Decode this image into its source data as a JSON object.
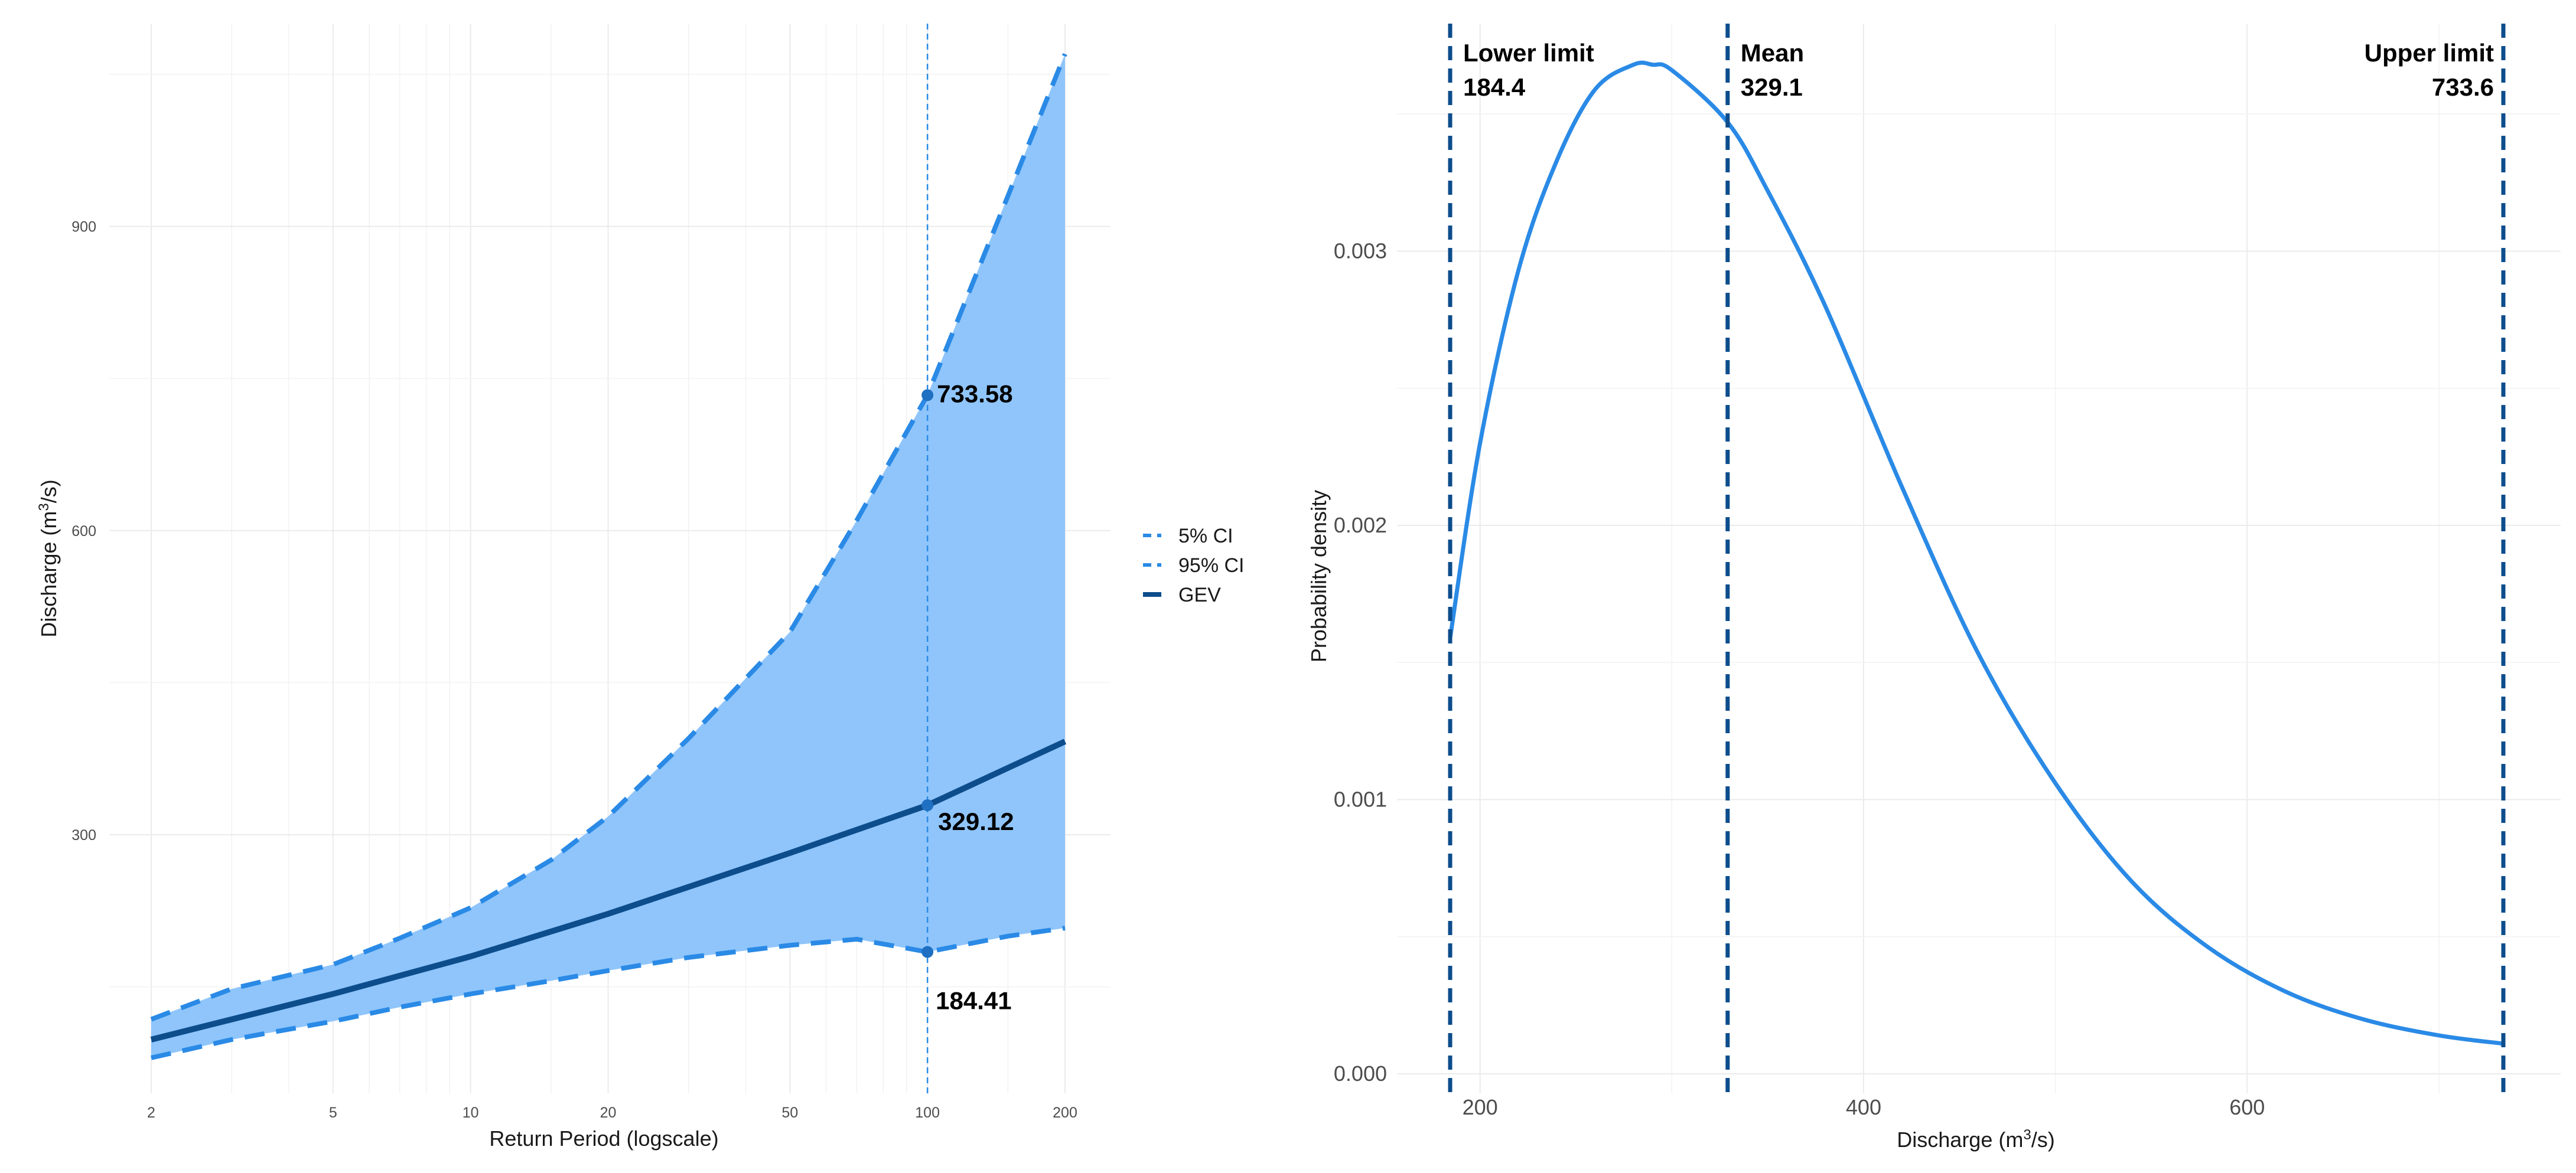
{
  "chart_data": [
    {
      "type": "line",
      "xlabel": "Return Period (logscale)",
      "ylabel_prefix": "Discharge (m",
      "ylabel_sup": "3",
      "ylabel_suffix": "/s)",
      "x_scale": "log",
      "xlim": [
        2,
        200
      ],
      "ylim": [
        45,
        1100
      ],
      "x_ticks": [
        2,
        5,
        10,
        20,
        50,
        100,
        200
      ],
      "x_tick_labels": [
        "2",
        "5",
        "10",
        "20",
        "50",
        "100",
        "200"
      ],
      "y_ticks": [
        300,
        600,
        900
      ],
      "y_tick_labels": [
        "300",
        "600",
        "900"
      ],
      "grid": true,
      "legend_position": "right",
      "reference_x": 100,
      "series": [
        {
          "name": "5% CI",
          "style": "dashed",
          "color": "#2a8ae6",
          "x": [
            2,
            3,
            5,
            7,
            10,
            15,
            20,
            30,
            50,
            70,
            100,
            150,
            200
          ],
          "y": [
            80,
            98,
            116,
            130,
            143,
            156,
            166,
            179,
            191,
            197,
            184.41,
            200,
            208
          ]
        },
        {
          "name": "95% CI",
          "style": "dashed",
          "color": "#2a8ae6",
          "x": [
            2,
            3,
            5,
            7,
            10,
            15,
            20,
            30,
            50,
            70,
            100,
            150,
            200
          ],
          "y": [
            118,
            148,
            172,
            198,
            228,
            275,
            318,
            395,
            500,
            610,
            733.58,
            930,
            1070
          ]
        },
        {
          "name": "GEV",
          "style": "solid",
          "color": "#0d4d8c",
          "x": [
            2,
            5,
            10,
            20,
            50,
            100,
            200
          ],
          "y": [
            98,
            143,
            180,
            222,
            282,
            329.12,
            392
          ]
        }
      ],
      "points": [
        {
          "x": 100,
          "y": 733.58,
          "label": "733.58"
        },
        {
          "x": 100,
          "y": 329.12,
          "label": "329.12"
        },
        {
          "x": 100,
          "y": 184.41,
          "label": "184.41"
        }
      ],
      "ribbon_color": "#8fc5fb"
    },
    {
      "type": "line",
      "xlabel_prefix": "Discharge (m",
      "xlabel_sup": "3",
      "xlabel_suffix": "/s)",
      "ylabel": "Probability density",
      "xlim": [
        165,
        745
      ],
      "ylim": [
        -5e-05,
        0.00385
      ],
      "x_ticks": [
        200,
        400,
        600
      ],
      "x_tick_labels": [
        "200",
        "400",
        "600"
      ],
      "y_ticks": [
        0,
        0.001,
        0.002,
        0.003
      ],
      "y_tick_labels": [
        "0.000",
        "0.001",
        "0.002",
        "0.003"
      ],
      "grid": true,
      "series": [
        {
          "name": "",
          "style": "solid",
          "color": "#2a8ae6",
          "x": [
            184.4,
            200,
            220,
            240,
            260,
            280,
            290,
            300,
            329.1,
            350,
            380,
            420,
            460,
            500,
            540,
            580,
            620,
            660,
            700,
            733.6
          ],
          "y": [
            0.00159,
            0.0023,
            0.00293,
            0.00333,
            0.00359,
            0.00368,
            0.00368,
            0.00366,
            0.00347,
            0.00322,
            0.0028,
            0.00214,
            0.00153,
            0.00106,
            0.0007,
            0.00046,
            0.0003,
            0.0002,
            0.00014,
            0.00011
          ]
        }
      ],
      "vlines": [
        {
          "x": 184.4,
          "title": "Lower limit",
          "value": "184.4",
          "align": "start"
        },
        {
          "x": 329.1,
          "title": "Mean",
          "value": "329.1",
          "align": "start"
        },
        {
          "x": 733.6,
          "title": "Upper limit",
          "value": "733.6",
          "align": "end"
        }
      ],
      "vline_color": "#0d4d8c"
    }
  ]
}
